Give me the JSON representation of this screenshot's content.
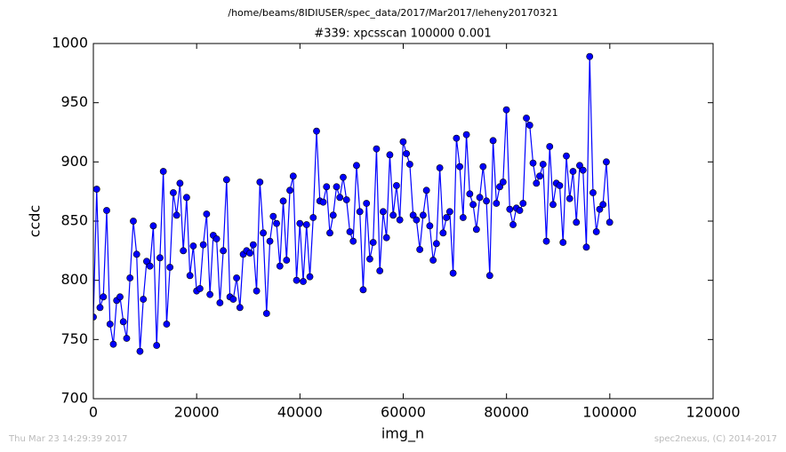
{
  "chart_data": {
    "type": "line",
    "suptitle": "/home/beams/8IDIUSER/spec_data/2017/Mar2017/leheny20170321",
    "title": "#339: xpcsscan 100000 0.001",
    "xlabel": "img_n",
    "ylabel": "ccdc",
    "footer_left": "Thu Mar 23 14:29:39 2017",
    "footer_right": "spec2nexus, (C) 2014-2017",
    "xlim": [
      0,
      120000
    ],
    "xticks": [
      0,
      20000,
      40000,
      60000,
      80000,
      100000,
      120000
    ],
    "ylim": [
      700,
      1000
    ],
    "yticks": [
      700,
      750,
      800,
      850,
      900,
      950,
      1000
    ],
    "grid": false,
    "x": [
      0,
      645,
      1290,
      1935,
      2580,
      3225,
      3870,
      4515,
      5160,
      5805,
      6450,
      7095,
      7740,
      8385,
      9030,
      9675,
      10320,
      10965,
      11610,
      12255,
      12900,
      13545,
      14190,
      14835,
      15480,
      16125,
      16770,
      17415,
      18060,
      18705,
      19350,
      19995,
      20640,
      21285,
      21930,
      22575,
      23220,
      23865,
      24510,
      25155,
      25800,
      26445,
      27090,
      27735,
      28380,
      29025,
      29670,
      30315,
      30960,
      31605,
      32250,
      32895,
      33540,
      34185,
      34830,
      35475,
      36120,
      36765,
      37410,
      38055,
      38700,
      39345,
      39990,
      40635,
      41280,
      41925,
      42570,
      43215,
      43860,
      44505,
      45150,
      45795,
      46440,
      47085,
      47730,
      48375,
      49020,
      49665,
      50310,
      50955,
      51600,
      52245,
      52890,
      53535,
      54180,
      54825,
      55470,
      56115,
      56760,
      57405,
      58050,
      58695,
      59340,
      59985,
      60630,
      61275,
      61920,
      62565,
      63210,
      63855,
      64500,
      65145,
      65790,
      66435,
      67080,
      67725,
      68370,
      69015,
      69660,
      70305,
      70950,
      71595,
      72240,
      72885,
      73530,
      74175,
      74820,
      75465,
      76110,
      76755,
      77400,
      78045,
      78690,
      79335,
      79980,
      80625,
      81270,
      81915,
      82560,
      83205,
      83850,
      84495,
      85140,
      85785,
      86430,
      87075,
      87720,
      88365,
      89010,
      89655,
      90300,
      90945,
      91590,
      92235,
      92880,
      93525,
      94170,
      94815,
      95460,
      96105,
      96750,
      97395,
      98040,
      98685,
      99330,
      99975
    ],
    "series": [
      {
        "color": "#0000ff",
        "values": [
          769,
          877,
          777,
          786,
          859,
          763,
          746,
          783,
          786,
          765,
          751,
          802,
          850,
          822,
          740,
          784,
          816,
          812,
          846,
          745,
          819,
          892,
          763,
          811,
          874,
          855,
          882,
          825,
          870,
          804,
          829,
          791,
          793,
          830,
          856,
          788,
          838,
          835,
          781,
          825,
          885,
          786,
          784,
          802,
          777,
          822,
          825,
          823,
          830,
          791,
          883,
          840,
          772,
          833,
          854,
          848,
          812,
          867,
          817,
          876,
          888,
          800,
          848,
          799,
          847,
          803,
          853,
          926,
          867,
          866,
          879,
          840,
          855,
          879,
          870,
          887,
          868,
          841,
          833,
          897,
          858,
          792,
          865,
          818,
          832,
          911,
          808,
          858,
          836,
          906,
          855,
          880,
          851,
          917,
          907,
          898,
          855,
          851,
          826,
          855,
          876,
          846,
          817,
          831,
          895,
          840,
          853,
          858,
          806,
          920,
          896,
          853,
          923,
          873,
          864,
          843,
          870,
          896,
          867,
          804,
          918,
          865,
          879,
          883,
          944,
          860,
          847,
          861,
          859,
          865,
          937,
          931,
          899,
          882,
          888,
          898,
          833,
          913,
          864,
          882,
          880,
          832,
          905,
          869,
          892,
          849,
          897,
          893,
          828,
          989,
          874,
          841,
          860,
          864,
          900,
          849
        ]
      }
    ]
  }
}
